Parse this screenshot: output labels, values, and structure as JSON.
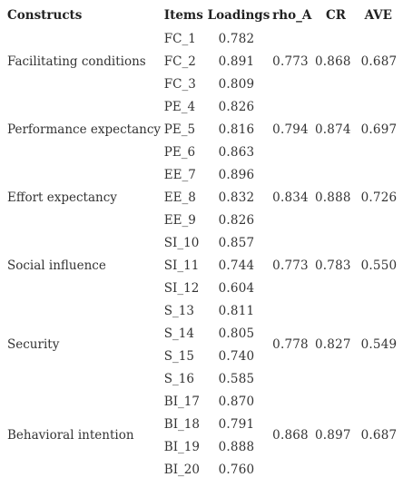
{
  "table": {
    "headers": {
      "construct": "Constructs",
      "item": "Items",
      "loading": "Loadings",
      "rho": "rho_A",
      "cr": "CR",
      "ave": "AVE"
    },
    "groups": [
      {
        "construct": "Facilitating conditions",
        "rho": "0.773",
        "cr": "0.868",
        "ave": "0.687",
        "rows": [
          {
            "item": "FC_1",
            "loading": "0.782"
          },
          {
            "item": "FC_2",
            "loading": "0.891"
          },
          {
            "item": "FC_3",
            "loading": "0.809"
          }
        ]
      },
      {
        "construct": "Performance expectancy",
        "rho": "0.794",
        "cr": "0.874",
        "ave": "0.697",
        "rows": [
          {
            "item": "PE_4",
            "loading": "0.826"
          },
          {
            "item": "PE_5",
            "loading": "0.816"
          },
          {
            "item": "PE_6",
            "loading": "0.863"
          }
        ]
      },
      {
        "construct": "Effort expectancy",
        "rho": "0.834",
        "cr": "0.888",
        "ave": "0.726",
        "rows": [
          {
            "item": "EE_7",
            "loading": "0.896"
          },
          {
            "item": "EE_8",
            "loading": "0.832"
          },
          {
            "item": "EE_9",
            "loading": "0.826"
          }
        ]
      },
      {
        "construct": "Social influence",
        "rho": "0.773",
        "cr": "0.783",
        "ave": "0.550",
        "rows": [
          {
            "item": "SI_10",
            "loading": "0.857"
          },
          {
            "item": "SI_11",
            "loading": "0.744"
          },
          {
            "item": "SI_12",
            "loading": "0.604"
          }
        ]
      },
      {
        "construct": "Security",
        "rho": "0.778",
        "cr": "0.827",
        "ave": "0.549",
        "rows": [
          {
            "item": "S_13",
            "loading": "0.811"
          },
          {
            "item": "S_14",
            "loading": "0.805"
          },
          {
            "item": "S_15",
            "loading": "0.740"
          },
          {
            "item": "S_16",
            "loading": "0.585"
          }
        ]
      },
      {
        "construct": "Behavioral intention",
        "rho": "0.868",
        "cr": "0.897",
        "ave": "0.687",
        "rows": [
          {
            "item": "BI_17",
            "loading": "0.870"
          },
          {
            "item": "BI_18",
            "loading": "0.791"
          },
          {
            "item": "BI_19",
            "loading": "0.888"
          },
          {
            "item": "BI_20",
            "loading": "0.760"
          }
        ]
      }
    ]
  }
}
